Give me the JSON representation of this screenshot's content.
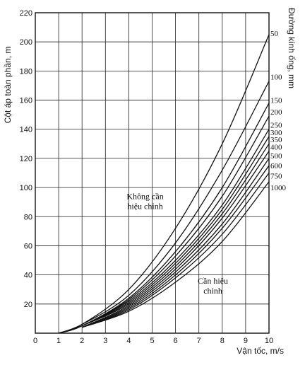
{
  "chart_data": {
    "type": "line",
    "xlabel": "Vận tốc, m/s",
    "ylabel": "Cột áp toàn phần, m",
    "right_label": "Đường kính ống, mm",
    "xlim": [
      0,
      10
    ],
    "ylim": [
      0,
      220
    ],
    "x_ticks": [
      0,
      1,
      2,
      3,
      4,
      5,
      6,
      7,
      8,
      9,
      10
    ],
    "y_ticks": [
      20,
      40,
      60,
      80,
      100,
      120,
      140,
      160,
      180,
      200,
      220
    ],
    "grid": true,
    "annotations": [
      {
        "lines": [
          "Không cần",
          "hiệu chỉnh"
        ],
        "x": 4.7,
        "y": 92
      },
      {
        "lines": [
          "Cần hiệu",
          "chỉnh"
        ],
        "x": 7.6,
        "y": 34
      }
    ],
    "series": [
      {
        "name": "50",
        "x": [
          1,
          2,
          4,
          6,
          8,
          10
        ],
        "y": [
          0,
          6,
          30,
          72,
          130,
          205
        ]
      },
      {
        "name": "100",
        "x": [
          1,
          2,
          4,
          6,
          8,
          10
        ],
        "y": [
          0,
          6,
          26,
          62,
          112,
          173
        ]
      },
      {
        "name": "150",
        "x": [
          1,
          2,
          4,
          6,
          8,
          10
        ],
        "y": [
          0,
          5,
          24,
          56,
          100,
          158
        ]
      },
      {
        "name": "200",
        "x": [
          1,
          2,
          4,
          6,
          8,
          10
        ],
        "y": [
          0,
          5,
          23,
          53,
          94,
          149
        ]
      },
      {
        "name": "250",
        "x": [
          2,
          4,
          6,
          8,
          10
        ],
        "y": [
          5,
          22,
          50,
          88,
          140
        ]
      },
      {
        "name": "300",
        "x": [
          2,
          4,
          6,
          8,
          10
        ],
        "y": [
          5,
          21,
          48,
          85,
          135
        ]
      },
      {
        "name": "350",
        "x": [
          2,
          4,
          6,
          8,
          10
        ],
        "y": [
          5,
          20,
          46,
          82,
          130
        ]
      },
      {
        "name": "400",
        "x": [
          2,
          4,
          6,
          8,
          10
        ],
        "y": [
          4,
          19,
          44,
          79,
          125
        ]
      },
      {
        "name": "500",
        "x": [
          2,
          4,
          6,
          8,
          10
        ],
        "y": [
          4,
          18,
          42,
          75,
          120
        ]
      },
      {
        "name": "600",
        "x": [
          2,
          4,
          6,
          8,
          10
        ],
        "y": [
          4,
          17,
          40,
          72,
          115
        ]
      },
      {
        "name": "750",
        "x": [
          2,
          4,
          6,
          8,
          10
        ],
        "y": [
          4,
          16,
          38,
          68,
          110
        ]
      },
      {
        "name": "1000",
        "x": [
          2,
          4,
          6,
          8,
          10
        ],
        "y": [
          4,
          15,
          35,
          63,
          104
        ]
      }
    ],
    "end_label_values": [
      206,
      176,
      160,
      152,
      143,
      138,
      133,
      128,
      122,
      115,
      108,
      100
    ]
  }
}
